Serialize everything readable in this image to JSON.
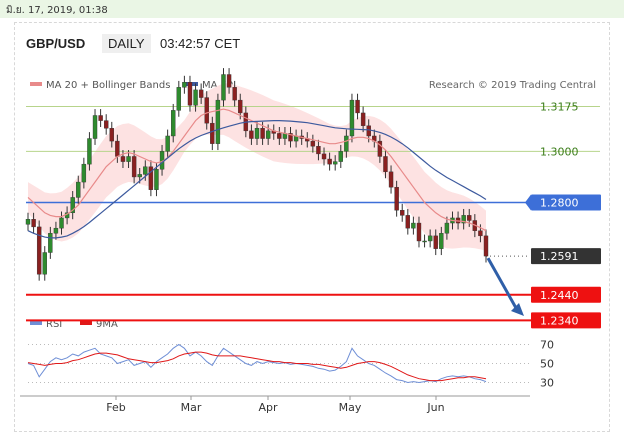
{
  "timestamp": "มิ.ย. 17, 2019, 01:38",
  "header": {
    "symbol": "GBP/USD",
    "timeframe": "DAILY",
    "time": "03:42:57 CET"
  },
  "legend": {
    "ma20": "MA 20 + Bollinger Bands",
    "ma50": "MA 50",
    "credit": "Research © 2019 Trading Central"
  },
  "colors": {
    "ma20": "#e88a8a",
    "ma50": "#3d5a9e",
    "bollinger": "#fde2e2",
    "green_line": "#b7d48b",
    "blue_line": "#3d6fd8",
    "red_line": "#ee1111",
    "current": "#333333",
    "arrow": "#2f5fa8",
    "rsi": "#6f8fd6",
    "rsi9": "#e01818"
  },
  "chart_data": {
    "type": "candlestick",
    "x_labels": [
      "Feb",
      "Mar",
      "Apr",
      "May",
      "Jun"
    ],
    "ylim": [
      1.24,
      1.322
    ],
    "levels": [
      {
        "value": 1.3175,
        "label": "1.3175",
        "kind": "resistance-green"
      },
      {
        "value": 1.3,
        "label": "1.3000",
        "kind": "resistance-green"
      },
      {
        "value": 1.28,
        "label": "1.2800",
        "kind": "pivot-blue"
      },
      {
        "value": 1.2591,
        "label": "1.2591",
        "kind": "current"
      },
      {
        "value": 1.244,
        "label": "1.2440",
        "kind": "support-red"
      },
      {
        "value": 1.234,
        "label": "1.2340",
        "kind": "support-red"
      }
    ],
    "close": [
      1.2735,
      1.2705,
      1.252,
      1.2605,
      1.268,
      1.27,
      1.274,
      1.276,
      1.282,
      1.288,
      1.295,
      1.305,
      1.314,
      1.312,
      1.309,
      1.304,
      1.298,
      1.296,
      1.298,
      1.29,
      1.291,
      1.294,
      1.285,
      1.293,
      1.3,
      1.306,
      1.316,
      1.325,
      1.327,
      1.318,
      1.324,
      1.321,
      1.311,
      1.303,
      1.32,
      1.33,
      1.325,
      1.32,
      1.315,
      1.308,
      1.305,
      1.309,
      1.305,
      1.308,
      1.307,
      1.305,
      1.307,
      1.304,
      1.306,
      1.305,
      1.304,
      1.302,
      1.299,
      1.297,
      1.295,
      1.296,
      1.3,
      1.306,
      1.32,
      1.315,
      1.31,
      1.306,
      1.304,
      1.298,
      1.292,
      1.286,
      1.277,
      1.275,
      1.27,
      1.272,
      1.265,
      1.265,
      1.267,
      1.262,
      1.268,
      1.272,
      1.274,
      1.272,
      1.275,
      1.273,
      1.269,
      1.267,
      1.2591
    ],
    "ma20": [
      1.282,
      1.28,
      1.278,
      1.276,
      1.275,
      1.2745,
      1.2745,
      1.2755,
      1.277,
      1.279,
      1.282,
      1.285,
      1.288,
      1.291,
      1.294,
      1.296,
      1.298,
      1.299,
      1.2995,
      1.299,
      1.298,
      1.297,
      1.296,
      1.2955,
      1.296,
      1.2975,
      1.3,
      1.303,
      1.306,
      1.309,
      1.312,
      1.314,
      1.315,
      1.3155,
      1.316,
      1.3165,
      1.316,
      1.315,
      1.314,
      1.313,
      1.312,
      1.311,
      1.31,
      1.309,
      1.308,
      1.3075,
      1.307,
      1.3065,
      1.306,
      1.3055,
      1.305,
      1.3045,
      1.304,
      1.3035,
      1.303,
      1.303,
      1.3035,
      1.304,
      1.305,
      1.3055,
      1.3055,
      1.305,
      1.304,
      1.3025,
      1.3005,
      1.298,
      1.295,
      1.292,
      1.289,
      1.286,
      1.283,
      1.28,
      1.278,
      1.276,
      1.2745,
      1.2735,
      1.273,
      1.2728,
      1.2726,
      1.272,
      1.2712,
      1.2702,
      1.269
    ],
    "ma50": [
      1.269,
      1.268,
      1.2672,
      1.2665,
      1.2662,
      1.2662,
      1.2665,
      1.267,
      1.268,
      1.2692,
      1.2706,
      1.2722,
      1.274,
      1.2758,
      1.2776,
      1.2794,
      1.2812,
      1.283,
      1.2848,
      1.2866,
      1.2884,
      1.2902,
      1.292,
      1.2938,
      1.2956,
      1.2974,
      1.2992,
      1.301,
      1.3025,
      1.304,
      1.3052,
      1.3062,
      1.307,
      1.3078,
      1.3085,
      1.3092,
      1.3098,
      1.3104,
      1.311,
      1.3114,
      1.3116,
      1.3117,
      1.3118,
      1.3119,
      1.312,
      1.312,
      1.3119,
      1.3118,
      1.3116,
      1.3114,
      1.3112,
      1.3108,
      1.3104,
      1.31,
      1.3096,
      1.3092,
      1.309,
      1.3088,
      1.3087,
      1.3086,
      1.3085,
      1.3084,
      1.308,
      1.3074,
      1.3066,
      1.3056,
      1.3044,
      1.303,
      1.3014,
      1.2996,
      1.2978,
      1.296,
      1.2942,
      1.2926,
      1.2912,
      1.2898,
      1.2886,
      1.2874,
      1.2862,
      1.285,
      1.2838,
      1.2826,
      1.2812
    ],
    "rsi": {
      "ticks": [
        70,
        50,
        30
      ],
      "ylim": [
        20,
        80
      ],
      "labels": {
        "rsi": "RSI",
        "ma": "9MA"
      },
      "rsi": [
        50,
        48,
        36,
        44,
        52,
        56,
        54,
        56,
        60,
        58,
        62,
        64,
        66,
        60,
        58,
        56,
        50,
        52,
        54,
        48,
        50,
        52,
        46,
        52,
        56,
        60,
        66,
        70,
        66,
        58,
        62,
        58,
        52,
        48,
        58,
        66,
        62,
        58,
        54,
        50,
        48,
        52,
        50,
        52,
        51,
        50,
        51,
        49,
        50,
        49,
        48,
        47,
        45,
        44,
        42,
        43,
        47,
        52,
        66,
        58,
        54,
        50,
        48,
        44,
        40,
        37,
        33,
        32,
        30,
        31,
        30,
        31,
        32,
        31,
        34,
        36,
        37,
        36,
        37,
        36,
        34,
        33,
        31
      ],
      "ma9": [
        51,
        50,
        49,
        48,
        49,
        50,
        50,
        51,
        53,
        54,
        56,
        58,
        60,
        61,
        61,
        60,
        59,
        57,
        55,
        54,
        53,
        52,
        51,
        51,
        52,
        53,
        55,
        58,
        60,
        61,
        62,
        62,
        61,
        59,
        58,
        58,
        58,
        58,
        58,
        57,
        56,
        55,
        54,
        53,
        52,
        52,
        51,
        51,
        50,
        50,
        50,
        49,
        49,
        48,
        47,
        46,
        45,
        46,
        48,
        50,
        51,
        52,
        52,
        51,
        49,
        47,
        44,
        41,
        38,
        36,
        34,
        33,
        32,
        32,
        32,
        33,
        34,
        35,
        35,
        36,
        36,
        35,
        34
      ]
    }
  }
}
